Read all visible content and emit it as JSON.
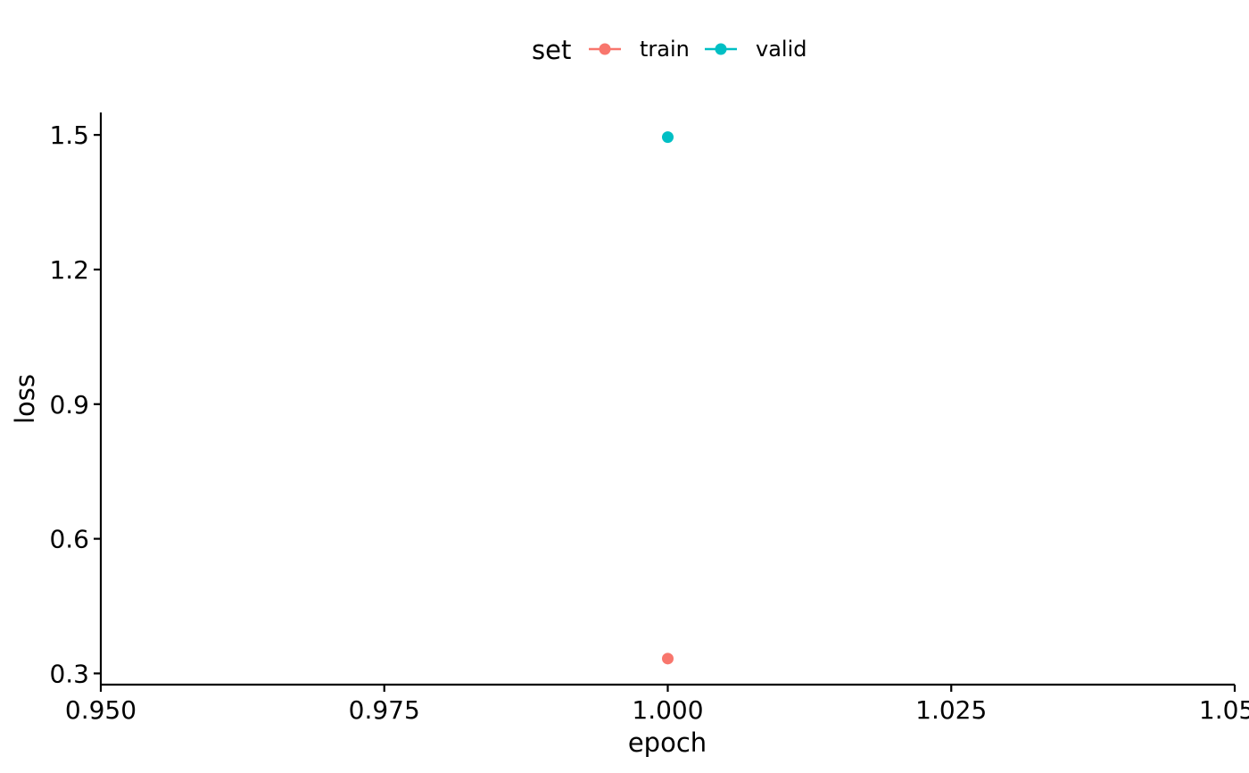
{
  "chart_data": {
    "type": "scatter",
    "xlabel": "epoch",
    "ylabel": "loss",
    "xlim": [
      0.95,
      1.05
    ],
    "ylim": [
      0.275,
      1.55
    ],
    "x_ticks": [
      0.95,
      0.975,
      1.0,
      1.025,
      1.05
    ],
    "x_tick_labels": [
      "0.950",
      "0.975",
      "1.000",
      "1.025",
      "1.050"
    ],
    "y_ticks": [
      0.3,
      0.6,
      0.9,
      1.2,
      1.5
    ],
    "y_tick_labels": [
      "0.3",
      "0.6",
      "0.9",
      "1.2",
      "1.5"
    ],
    "grid": false,
    "legend": {
      "title": "set",
      "position": "top"
    },
    "series": [
      {
        "name": "train",
        "color": "#F8766D",
        "points": [
          {
            "x": 1.0,
            "y": 0.333
          }
        ]
      },
      {
        "name": "valid",
        "color": "#00BFC4",
        "points": [
          {
            "x": 1.0,
            "y": 1.495
          }
        ]
      }
    ]
  }
}
